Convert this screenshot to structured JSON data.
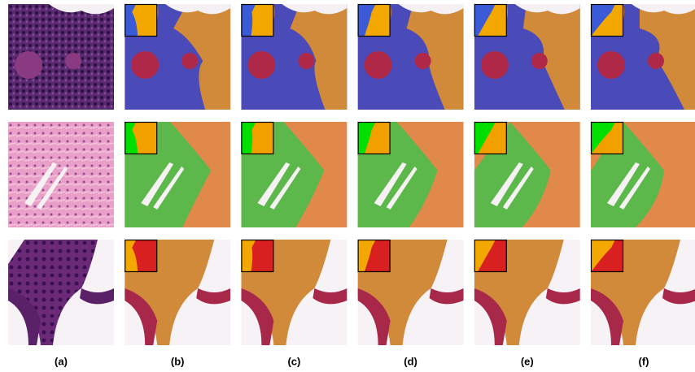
{
  "figure": {
    "column_labels": [
      "(a)",
      "(b)",
      "(c)",
      "(d)",
      "(e)",
      "(f)"
    ]
  }
}
